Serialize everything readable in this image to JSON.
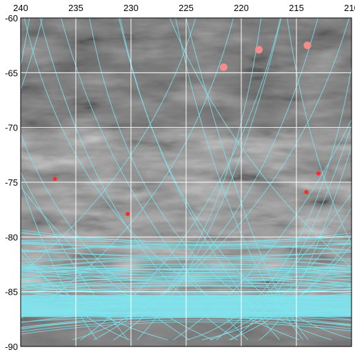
{
  "chart_data": {
    "type": "scatter",
    "title": "",
    "xlabel": "",
    "ylabel": "",
    "xlim": [
      240,
      210
    ],
    "ylim": [
      -90,
      -60
    ],
    "x_ticks": [
      240,
      235,
      230,
      225,
      220,
      215,
      210
    ],
    "y_ticks": [
      -60,
      -65,
      -70,
      -75,
      -80,
      -85,
      -90
    ],
    "x_tick_labels": [
      "240",
      "235",
      "230",
      "225",
      "220",
      "215",
      "210"
    ],
    "y_tick_labels": [
      "-60",
      "-65",
      "-70",
      "-75",
      "-80",
      "-85",
      "-90"
    ],
    "grid": true,
    "grid_color": "#ffffff",
    "track_color": "#7fe4ee",
    "background": "grayscale terrain image",
    "series": [
      {
        "marker_color": "#f58c8c",
        "marker_size": "large",
        "points": [
          {
            "x": 221.6,
            "y": -64.5
          },
          {
            "x": 218.4,
            "y": -62.9
          },
          {
            "x": 214.0,
            "y": -62.5
          }
        ]
      },
      {
        "marker_color": "#ff2a2a",
        "marker_size": "small",
        "points": [
          {
            "x": 236.9,
            "y": -74.7
          },
          {
            "x": 230.3,
            "y": -77.9
          },
          {
            "x": 213.0,
            "y": -74.2
          },
          {
            "x": 214.1,
            "y": -75.9
          }
        ]
      }
    ]
  }
}
